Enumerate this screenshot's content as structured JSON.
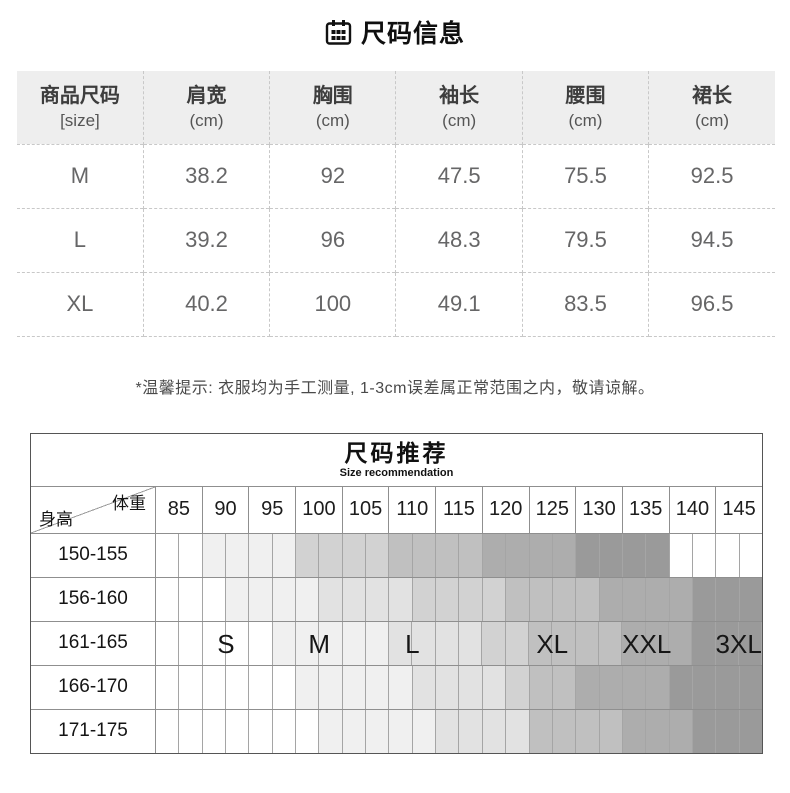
{
  "title": {
    "icon": "calendar-grid-icon",
    "text": "尺码信息"
  },
  "size_table": {
    "columns": [
      {
        "name": "商品尺码",
        "unit": "[size]"
      },
      {
        "name": "肩宽",
        "unit": "(cm)"
      },
      {
        "name": "胸围",
        "unit": "(cm)"
      },
      {
        "name": "袖长",
        "unit": "(cm)"
      },
      {
        "name": "腰围",
        "unit": "(cm)"
      },
      {
        "name": "裙长",
        "unit": "(cm)"
      }
    ],
    "rows": [
      [
        "M",
        "38.2",
        "92",
        "47.5",
        "75.5",
        "92.5"
      ],
      [
        "L",
        "39.2",
        "96",
        "48.3",
        "79.5",
        "94.5"
      ],
      [
        "XL",
        "40.2",
        "100",
        "49.1",
        "83.5",
        "96.5"
      ]
    ]
  },
  "note": "*温馨提示: 衣服均为手工测量, 1-3cm误差属正常范围之内，敬请谅解。",
  "chart_data": {
    "type": "heatmap",
    "title": "尺码推荐",
    "subtitle": "Size recommendation",
    "corner": {
      "top_right": "体重",
      "bottom_left": "身高"
    },
    "weight_columns": [
      "85",
      "90",
      "95",
      "100",
      "105",
      "110",
      "115",
      "120",
      "125",
      "130",
      "135",
      "140",
      "145"
    ],
    "height_rows": [
      "150-155",
      "156-160",
      "161-165",
      "166-170",
      "171-175"
    ],
    "size_bands": [
      "S",
      "M",
      "L",
      "XL",
      "XXL",
      "3XL"
    ],
    "palette": [
      "#ffffff",
      "#f0f0f0",
      "#e2e2e2",
      "#d2d2d2",
      "#c0c0c0",
      "#adadad",
      "#9a9a9a"
    ],
    "cell_shades": [
      [
        0,
        0,
        1,
        1,
        1,
        1,
        3,
        3,
        3,
        3,
        4,
        4,
        4,
        4,
        5,
        5,
        5,
        5,
        6,
        6,
        6,
        6,
        0,
        0,
        0,
        0
      ],
      [
        0,
        0,
        0,
        1,
        1,
        1,
        1,
        2,
        2,
        2,
        2,
        3,
        3,
        3,
        3,
        4,
        4,
        4,
        4,
        5,
        5,
        5,
        5,
        6,
        6,
        6
      ],
      [
        0,
        0,
        0,
        0,
        0,
        1,
        1,
        1,
        1,
        1,
        2,
        2,
        2,
        2,
        3,
        3,
        4,
        4,
        4,
        4,
        5,
        5,
        5,
        6,
        6,
        6
      ],
      [
        0,
        0,
        0,
        0,
        0,
        0,
        1,
        1,
        1,
        1,
        1,
        2,
        2,
        2,
        2,
        3,
        4,
        4,
        5,
        5,
        5,
        5,
        6,
        6,
        6,
        6
      ],
      [
        0,
        0,
        0,
        0,
        0,
        0,
        0,
        1,
        1,
        1,
        1,
        1,
        2,
        2,
        2,
        2,
        4,
        4,
        4,
        4,
        5,
        5,
        5,
        6,
        6,
        6
      ]
    ],
    "labels": [
      {
        "label": "S",
        "row": 2,
        "col": 1
      },
      {
        "label": "M",
        "row": 2,
        "col": 3
      },
      {
        "label": "L",
        "row": 2,
        "col": 5
      },
      {
        "label": "XL",
        "row": 2,
        "col": 8
      },
      {
        "label": "XXL",
        "row": 2,
        "col": 10
      },
      {
        "label": "3XL",
        "row": 2,
        "col": 12
      }
    ]
  }
}
